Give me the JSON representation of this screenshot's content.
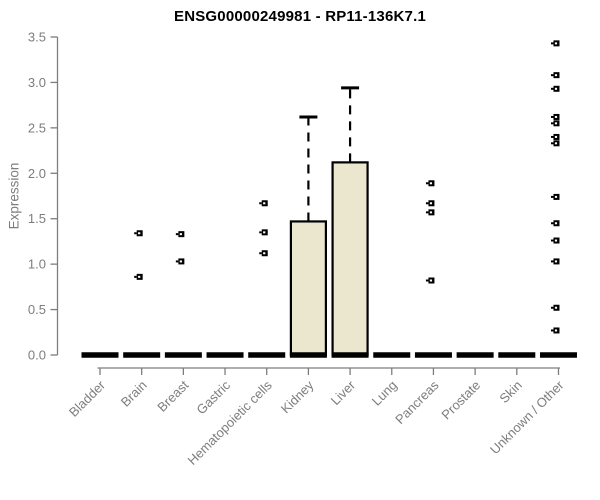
{
  "chart_data": {
    "type": "boxplot",
    "title": "ENSG00000249981 - RP11-136K7.1",
    "ylabel": "Expression",
    "xlabel": "",
    "ylim": [
      0,
      3.5
    ],
    "yticks": [
      0.0,
      0.5,
      1.0,
      1.5,
      2.0,
      2.5,
      3.0,
      3.5
    ],
    "grid": "off",
    "legend": "none",
    "categories": [
      "Bladder",
      "Brain",
      "Breast",
      "Gastric",
      "Hematopoietic cells",
      "Kidney",
      "Liver",
      "Lung",
      "Pancreas",
      "Prostate",
      "Skin",
      "Unknown / Other"
    ],
    "boxes": [
      {
        "category": "Bladder",
        "median": 0,
        "q1": 0,
        "q3": 0,
        "whisker_high": 0,
        "outliers": []
      },
      {
        "category": "Brain",
        "median": 0,
        "q1": 0,
        "q3": 0,
        "whisker_high": 0,
        "outliers": [
          1.34,
          0.86
        ]
      },
      {
        "category": "Breast",
        "median": 0,
        "q1": 0,
        "q3": 0,
        "whisker_high": 0,
        "outliers": [
          1.33,
          1.03
        ]
      },
      {
        "category": "Gastric",
        "median": 0,
        "q1": 0,
        "q3": 0,
        "whisker_high": 0,
        "outliers": []
      },
      {
        "category": "Hematopoietic cells",
        "median": 0,
        "q1": 0,
        "q3": 0,
        "whisker_high": 0,
        "outliers": [
          1.67,
          1.35,
          1.12
        ]
      },
      {
        "category": "Kidney",
        "median": 0,
        "q1": 0,
        "q3": 1.47,
        "whisker_high": 2.62,
        "outliers": []
      },
      {
        "category": "Liver",
        "median": 0,
        "q1": 0,
        "q3": 2.12,
        "whisker_high": 2.94,
        "outliers": []
      },
      {
        "category": "Lung",
        "median": 0,
        "q1": 0,
        "q3": 0,
        "whisker_high": 0,
        "outliers": []
      },
      {
        "category": "Pancreas",
        "median": 0,
        "q1": 0,
        "q3": 0,
        "whisker_high": 0,
        "outliers": [
          1.89,
          1.67,
          1.57,
          0.82
        ]
      },
      {
        "category": "Prostate",
        "median": 0,
        "q1": 0,
        "q3": 0,
        "whisker_high": 0,
        "outliers": []
      },
      {
        "category": "Skin",
        "median": 0,
        "q1": 0,
        "q3": 0,
        "whisker_high": 0,
        "outliers": []
      },
      {
        "category": "Unknown / Other",
        "median": 0,
        "q1": 0,
        "q3": 0,
        "whisker_high": 0,
        "outliers": [
          3.43,
          3.08,
          2.93,
          2.62,
          2.55,
          2.4,
          2.33,
          1.74,
          1.45,
          1.26,
          1.03,
          0.52,
          0.27
        ]
      }
    ],
    "colors": {
      "box_fill": "#EBE7CF",
      "box_border": "#000000",
      "median_bar": "#000000",
      "outlier": "#000000",
      "axis": "#7d7d7d",
      "tick_label": "#7d7d7d",
      "title": "#000000"
    }
  }
}
